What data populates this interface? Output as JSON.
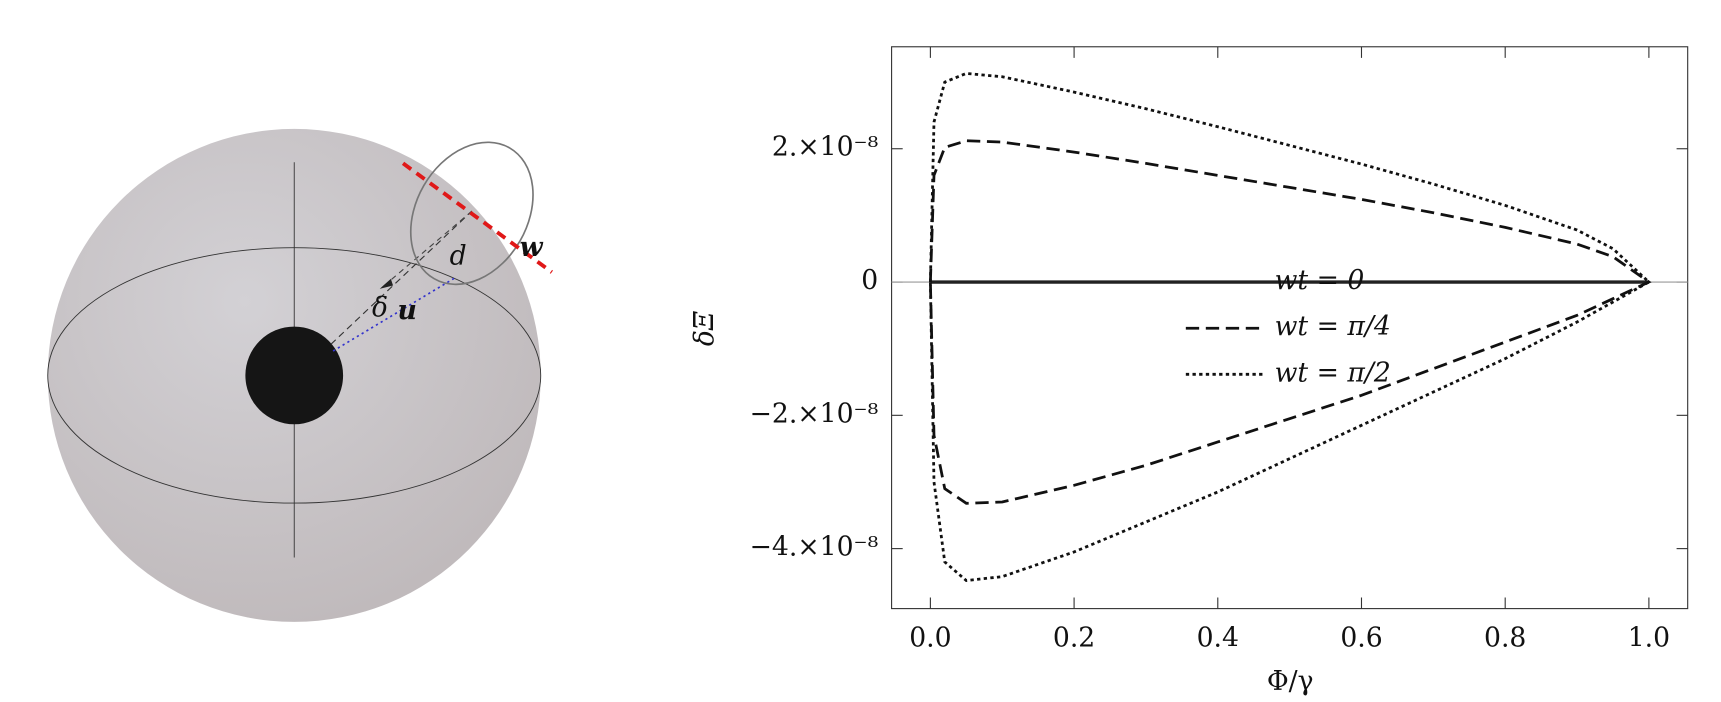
{
  "diagram": {
    "labels": {
      "d": "d",
      "delta": "δ",
      "u": "u",
      "w": "w"
    }
  },
  "chart_data": {
    "type": "line",
    "xlabel": "Φ/γ",
    "ylabel": "δΞ",
    "x": [
      0,
      0.005,
      0.02,
      0.05,
      0.1,
      0.2,
      0.3,
      0.4,
      0.5,
      0.6,
      0.7,
      0.8,
      0.9,
      0.95,
      1,
      0.95,
      0.9,
      0.8,
      0.7,
      0.6,
      0.5,
      0.4,
      0.3,
      0.2,
      0.1,
      0.05,
      0.02,
      0.005,
      0
    ],
    "series": [
      {
        "name": "wt = 0",
        "color": "#222222",
        "dash": "solid",
        "values": [
          0,
          0,
          0,
          0,
          0,
          0,
          0,
          0,
          0,
          0,
          0,
          0,
          0,
          0,
          0,
          0,
          0,
          0,
          0,
          0,
          0,
          0,
          0,
          0,
          0,
          0,
          0,
          0,
          0
        ]
      },
      {
        "name": "wt = π/4",
        "color": "#111111",
        "dash": "dashed",
        "values": [
          0,
          1.6e-08,
          2.02e-08,
          2.12e-08,
          2.1e-08,
          1.95e-08,
          1.78e-08,
          1.6e-08,
          1.42e-08,
          1.24e-08,
          1.04e-08,
          8.2e-09,
          5.7e-09,
          3.8e-09,
          0,
          -2.5e-09,
          -5e-09,
          -9e-09,
          -1.3e-08,
          -1.7e-08,
          -2.05e-08,
          -2.4e-08,
          -2.75e-08,
          -3.05e-08,
          -3.3e-08,
          -3.32e-08,
          -3.1e-08,
          -2.3e-08,
          0
        ]
      },
      {
        "name": "wt = π/2",
        "color": "#111111",
        "dash": "dotted",
        "values": [
          0,
          2.4e-08,
          3e-08,
          3.13e-08,
          3.08e-08,
          2.85e-08,
          2.6e-08,
          2.33e-08,
          2.05e-08,
          1.77e-08,
          1.47e-08,
          1.15e-08,
          7.8e-09,
          5e-09,
          0,
          -3e-09,
          -6e-09,
          -1.15e-08,
          -1.65e-08,
          -2.15e-08,
          -2.65e-08,
          -3.15e-08,
          -3.6e-08,
          -4.05e-08,
          -4.42e-08,
          -4.48e-08,
          -4.2e-08,
          -3e-08,
          0
        ]
      }
    ],
    "xlim": [
      -0.054,
      1.054
    ],
    "xticks": [
      {
        "value": 0,
        "label": "0.0"
      },
      0.2,
      0.4,
      0.6,
      0.8,
      {
        "value": 1,
        "label": "1.0"
      }
    ],
    "ylim": [
      -4.9e-08,
      3.53e-08
    ],
    "yticks": [
      {
        "value": -4e-08,
        "label": "−4.×10⁻⁸"
      },
      {
        "value": -2e-08,
        "label": "−2.×10⁻⁸"
      },
      0,
      {
        "value": 2e-08,
        "label": "2.×10⁻⁸"
      }
    ],
    "zero_line": true
  }
}
